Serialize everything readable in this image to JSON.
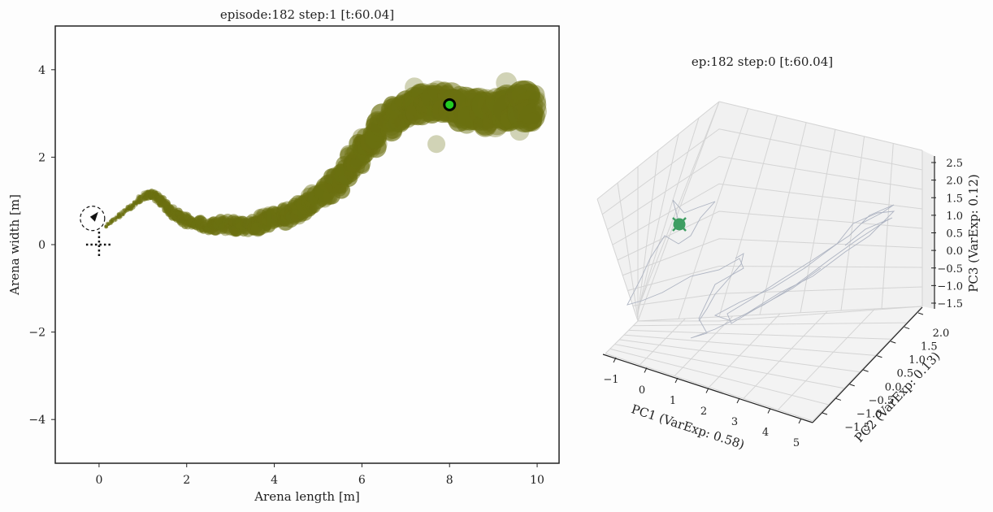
{
  "chart_data": [
    {
      "type": "scatter",
      "title": "episode:182 step:1 [t:60.04]",
      "xlabel": "Arena length [m]",
      "ylabel": "Arena width [m]",
      "xlim": [
        -1,
        10.5
      ],
      "ylim": [
        -5,
        5
      ],
      "x_ticks": [
        0,
        2,
        4,
        6,
        8,
        10
      ],
      "y_ticks": [
        -4,
        -2,
        0,
        2,
        4
      ],
      "x_tick_labels": [
        "0",
        "2",
        "4",
        "6",
        "8",
        "10"
      ],
      "y_tick_labels": [
        "−4",
        "−2",
        "0",
        "2",
        "4"
      ],
      "grid": false,
      "colors": {
        "trail": "#6b7010",
        "target_ring": "#000000",
        "target_fill": "#22cc22"
      },
      "trajectory": [
        [
          0.15,
          0.42
        ],
        [
          0.45,
          0.65
        ],
        [
          0.75,
          0.88
        ],
        [
          1.05,
          1.12
        ],
        [
          1.25,
          1.15
        ],
        [
          1.45,
          0.95
        ],
        [
          1.7,
          0.72
        ],
        [
          2.0,
          0.55
        ],
        [
          2.4,
          0.45
        ],
        [
          2.8,
          0.45
        ],
        [
          3.2,
          0.42
        ],
        [
          3.6,
          0.48
        ],
        [
          4.0,
          0.58
        ],
        [
          4.4,
          0.72
        ],
        [
          4.8,
          0.92
        ],
        [
          5.2,
          1.2
        ],
        [
          5.6,
          1.6
        ],
        [
          5.95,
          2.05
        ],
        [
          6.3,
          2.5
        ],
        [
          6.7,
          2.9
        ],
        [
          7.1,
          3.15
        ],
        [
          7.5,
          3.25
        ],
        [
          7.9,
          3.25
        ],
        [
          8.3,
          3.1
        ],
        [
          8.7,
          3.0
        ],
        [
          9.1,
          3.05
        ],
        [
          9.5,
          3.15
        ],
        [
          9.9,
          3.1
        ]
      ],
      "target": [
        8.0,
        3.2
      ],
      "agent": [
        -0.15,
        0.6
      ],
      "origin_marker": [
        0,
        0
      ]
    },
    {
      "type": "line3d",
      "title": "ep:182 step:0 [t:60.04]",
      "xlabel": "PC1 (VarExp: 0.58)",
      "ylabel": "PC2 (VarExp: 0.13)",
      "zlabel": "PC3 (VarExp: 0.12)",
      "x_tick_labels": [
        "−1",
        "0",
        "1",
        "2",
        "3",
        "4",
        "5"
      ],
      "y_tick_labels": [
        "−1.5",
        "−1.0",
        "−0.5",
        "0.0",
        "0.5",
        "1.0",
        "1.5",
        "2.0"
      ],
      "z_tick_labels": [
        "−1.5",
        "−1.0",
        "−0.5",
        "0.0",
        "0.5",
        "1.0",
        "1.5",
        "2.0",
        "2.5"
      ],
      "colors": {
        "trace": "#aeb4c2",
        "marker": "#3e9e62",
        "grid": "#d4d4d4",
        "pane": "#f1f1f1"
      }
    }
  ]
}
